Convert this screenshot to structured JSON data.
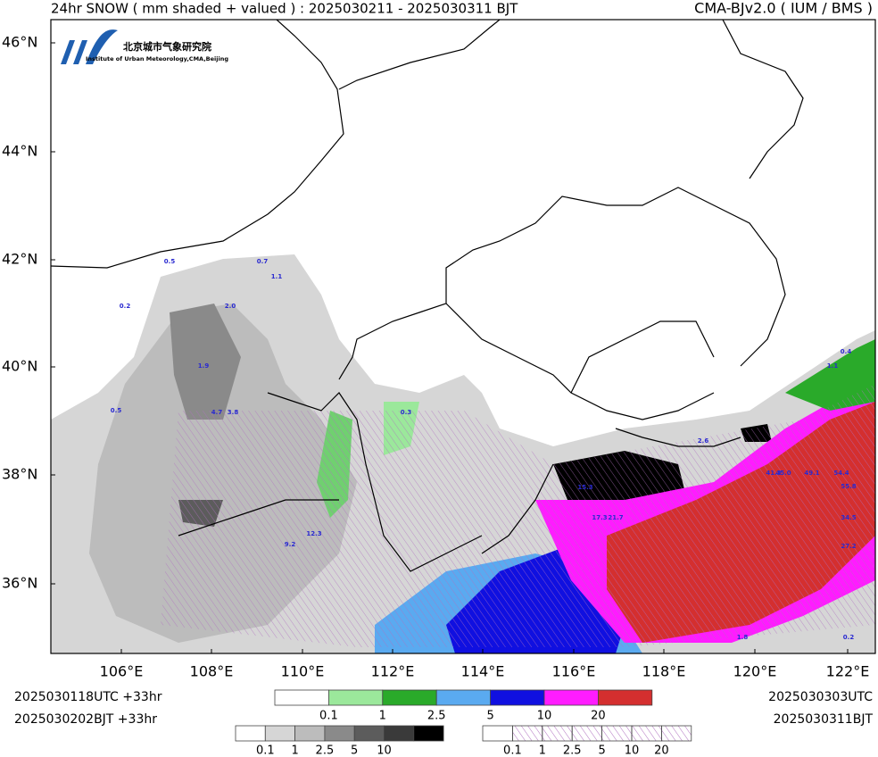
{
  "header": {
    "title": "24hr SNOW ( mm shaded + valued ) : 2025030211 - 2025030311 BJT",
    "model": "CMA-BJv2.0 ( IUM / BMS )"
  },
  "logo": {
    "chinese": "北京城市气象研究院",
    "english": "Institute of Urban Meteorology,CMA,Beijing"
  },
  "map": {
    "lat_labels": [
      "46°N",
      "44°N",
      "42°N",
      "40°N",
      "38°N",
      "36°N"
    ],
    "lon_labels": [
      "106°E",
      "108°E",
      "110°E",
      "112°E",
      "114°E",
      "116°E",
      "118°E",
      "120°E",
      "122°E"
    ],
    "values": [
      "0.5",
      "0.7",
      "1.1",
      "2.0",
      "4.7",
      "3.8",
      "12.3",
      "9.2",
      "0.3",
      "1.9",
      "0.2",
      "0.5",
      "15.3",
      "17.3",
      "21.7",
      "41.3",
      "45.0",
      "49.1",
      "54.4",
      "55.8",
      "34.5",
      "27.2",
      "1.8",
      "0.2",
      "0.4",
      "1.1",
      "2.6"
    ]
  },
  "footer": {
    "left_utc": "2025030118UTC  +33hr",
    "left_bjt": "2025030202BJT  +33hr",
    "right_utc": "2025030303UTC",
    "right_bjt": "2025030311BJT"
  },
  "legend": {
    "color_labels": [
      "0.1",
      "1",
      "2.5",
      "5",
      "10",
      "20"
    ],
    "gray_labels": [
      "0.1",
      "1",
      "2.5",
      "5",
      "10"
    ],
    "hatch_labels": [
      "0.1",
      "1",
      "2.5",
      "5",
      "10",
      "20"
    ]
  }
}
